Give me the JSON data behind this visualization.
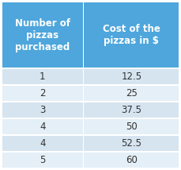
{
  "col1_header": "Number of\npizzas\npurchased",
  "col2_header": "Cost of the\npizzas in $",
  "rows": [
    [
      "1",
      "12.5"
    ],
    [
      "2",
      "25"
    ],
    [
      "3",
      "37.5"
    ],
    [
      "4",
      "50"
    ],
    [
      "4",
      "52.5"
    ],
    [
      "5",
      "60"
    ]
  ],
  "header_bg": "#4EA6DC",
  "header_text_color": "#FFFFFF",
  "row_bg_odd": "#D6E4F0",
  "row_bg_even": "#E4EFF7",
  "cell_text_color": "#333333",
  "border_color": "#FFFFFF",
  "header_fontsize": 8.5,
  "cell_fontsize": 8.5
}
